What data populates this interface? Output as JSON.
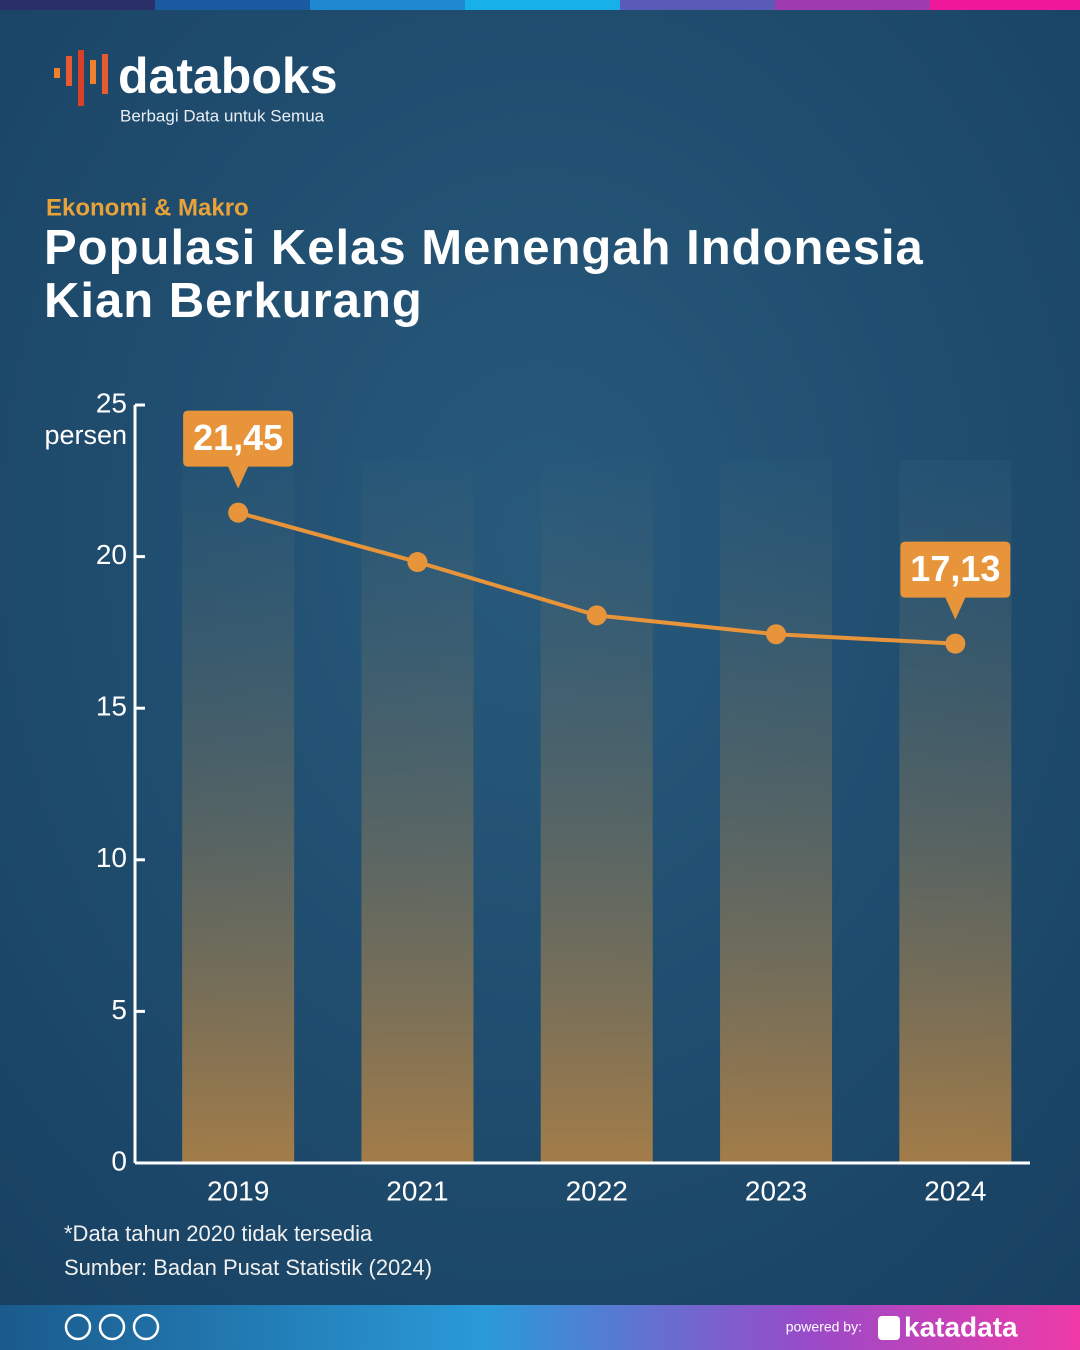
{
  "header": {
    "brand": "databoks",
    "tagline": "Berbagi Data untuk Semua",
    "category": "Ekonomi & Makro"
  },
  "chart_data": {
    "type": "line",
    "title": "Populasi Kelas Menengah Indonesia Kian Berkurang",
    "y_label": "persen",
    "categories": [
      "2019",
      "2021",
      "2022",
      "2023",
      "2024"
    ],
    "values": [
      21.45,
      19.82,
      18.06,
      17.44,
      17.13
    ],
    "value_labels": [
      "21,45",
      null,
      null,
      null,
      "17,13"
    ],
    "color": "#e8943a",
    "ylim": [
      0,
      25
    ],
    "yticks": [
      0,
      5,
      10,
      15,
      20,
      25
    ]
  },
  "notes": [
    "*Data tahun 2020 tidak tersedia",
    "Sumber: Badan Pusat Statistik (2024)"
  ],
  "footer": {
    "powered_by": "powered by:",
    "brand": "katadata"
  }
}
